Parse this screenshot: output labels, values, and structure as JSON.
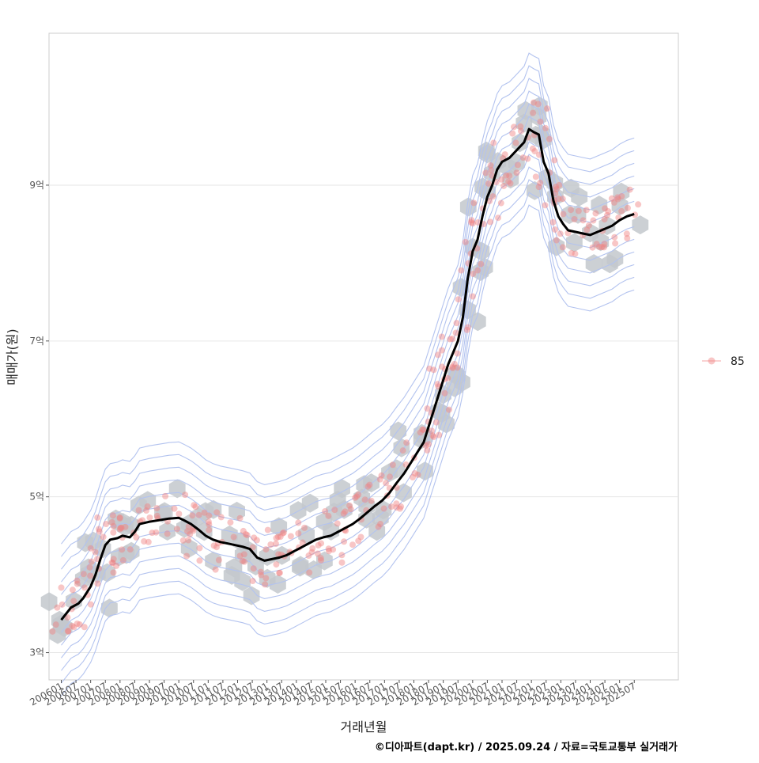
{
  "chart_data": {
    "type": "line",
    "xlabel": "거래년월",
    "ylabel": "매매가(원)",
    "caption": "©디아파트(dapt.kr) / 2025.09.24 / 자료=국토교통부 실거래가",
    "legend": {
      "entries": [
        "85"
      ],
      "position": "right",
      "color": "#f08080"
    },
    "colors": {
      "trend": "#000000",
      "points": "#f08080",
      "hex": "#c3c8cc",
      "contour": "#b3c3ef",
      "grid": "#e6e6e6",
      "panel_border": "#cccccc"
    },
    "grid": true,
    "y_unit": "억",
    "ylim": [
      2.65,
      10.95
    ],
    "xlim": [
      "2005-08",
      "2027-01"
    ],
    "y_ticks": [
      {
        "value": 3,
        "label": "3억"
      },
      {
        "value": 5,
        "label": "5억"
      },
      {
        "value": 7,
        "label": "7억"
      },
      {
        "value": 9,
        "label": "9억"
      }
    ],
    "x_ticks": [
      "200601",
      "200607",
      "200701",
      "200707",
      "200801",
      "200807",
      "200901",
      "200907",
      "201001",
      "201007",
      "201101",
      "201107",
      "201201",
      "201207",
      "201301",
      "201307",
      "201401",
      "201407",
      "201501",
      "201507",
      "201601",
      "201607",
      "201701",
      "201707",
      "201801",
      "201807",
      "201901",
      "201907",
      "202001",
      "202007",
      "202101",
      "202107",
      "202201",
      "202207",
      "202301",
      "202307",
      "202401",
      "202407",
      "202501",
      "202507"
    ],
    "series": [
      {
        "name": "85",
        "role": "moving-average",
        "points": [
          [
            "2006-01",
            3.42
          ],
          [
            "2006-03",
            3.5
          ],
          [
            "2006-05",
            3.58
          ],
          [
            "2006-08",
            3.63
          ],
          [
            "2006-10",
            3.7
          ],
          [
            "2007-01",
            3.85
          ],
          [
            "2007-03",
            4.0
          ],
          [
            "2007-05",
            4.2
          ],
          [
            "2007-07",
            4.38
          ],
          [
            "2007-09",
            4.45
          ],
          [
            "2007-12",
            4.47
          ],
          [
            "2008-02",
            4.5
          ],
          [
            "2008-05",
            4.48
          ],
          [
            "2008-07",
            4.55
          ],
          [
            "2008-09",
            4.65
          ],
          [
            "2009-01",
            4.68
          ],
          [
            "2009-05",
            4.7
          ],
          [
            "2009-09",
            4.72
          ],
          [
            "2010-01",
            4.73
          ],
          [
            "2010-03",
            4.7
          ],
          [
            "2010-06",
            4.65
          ],
          [
            "2010-09",
            4.58
          ],
          [
            "2010-12",
            4.5
          ],
          [
            "2011-03",
            4.45
          ],
          [
            "2011-06",
            4.42
          ],
          [
            "2011-09",
            4.4
          ],
          [
            "2011-12",
            4.38
          ],
          [
            "2012-03",
            4.36
          ],
          [
            "2012-06",
            4.33
          ],
          [
            "2012-09",
            4.22
          ],
          [
            "2012-12",
            4.18
          ],
          [
            "2013-03",
            4.2
          ],
          [
            "2013-06",
            4.22
          ],
          [
            "2013-09",
            4.25
          ],
          [
            "2013-12",
            4.3
          ],
          [
            "2014-03",
            4.35
          ],
          [
            "2014-06",
            4.4
          ],
          [
            "2014-09",
            4.45
          ],
          [
            "2014-12",
            4.48
          ],
          [
            "2015-03",
            4.5
          ],
          [
            "2015-06",
            4.55
          ],
          [
            "2015-09",
            4.6
          ],
          [
            "2015-12",
            4.65
          ],
          [
            "2016-03",
            4.72
          ],
          [
            "2016-06",
            4.8
          ],
          [
            "2016-09",
            4.88
          ],
          [
            "2016-12",
            4.95
          ],
          [
            "2017-03",
            5.05
          ],
          [
            "2017-06",
            5.18
          ],
          [
            "2017-09",
            5.3
          ],
          [
            "2017-12",
            5.45
          ],
          [
            "2018-03",
            5.6
          ],
          [
            "2018-05",
            5.7
          ],
          [
            "2018-07",
            5.9
          ],
          [
            "2018-09",
            6.1
          ],
          [
            "2018-11",
            6.3
          ],
          [
            "2019-01",
            6.5
          ],
          [
            "2019-03",
            6.7
          ],
          [
            "2019-05",
            6.85
          ],
          [
            "2019-07",
            7.0
          ],
          [
            "2019-09",
            7.3
          ],
          [
            "2019-11",
            7.8
          ],
          [
            "2020-01",
            8.15
          ],
          [
            "2020-03",
            8.3
          ],
          [
            "2020-05",
            8.6
          ],
          [
            "2020-07",
            8.85
          ],
          [
            "2020-09",
            9.0
          ],
          [
            "2020-11",
            9.2
          ],
          [
            "2021-01",
            9.3
          ],
          [
            "2021-04",
            9.35
          ],
          [
            "2021-07",
            9.45
          ],
          [
            "2021-10",
            9.55
          ],
          [
            "2021-12",
            9.72
          ],
          [
            "2022-02",
            9.68
          ],
          [
            "2022-04",
            9.65
          ],
          [
            "2022-06",
            9.3
          ],
          [
            "2022-08",
            9.15
          ],
          [
            "2022-10",
            8.8
          ],
          [
            "2022-12",
            8.6
          ],
          [
            "2023-02",
            8.5
          ],
          [
            "2023-04",
            8.42
          ],
          [
            "2023-07",
            8.4
          ],
          [
            "2023-10",
            8.38
          ],
          [
            "2024-01",
            8.36
          ],
          [
            "2024-04",
            8.4
          ],
          [
            "2024-07",
            8.44
          ],
          [
            "2024-10",
            8.48
          ],
          [
            "2025-01",
            8.55
          ],
          [
            "2025-04",
            8.6
          ],
          [
            "2025-07",
            8.63
          ]
        ]
      }
    ],
    "overlays": [
      "hexbin density",
      "2d density contours",
      "scatter of individual trades"
    ]
  }
}
